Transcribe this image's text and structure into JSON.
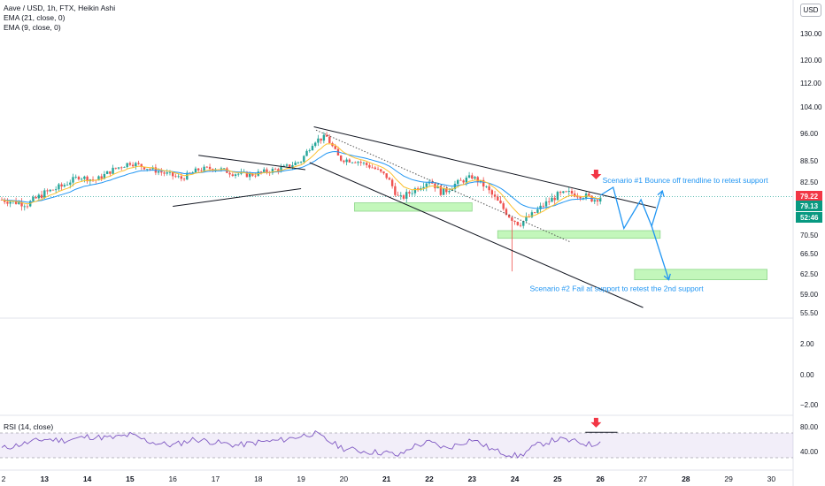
{
  "legend": {
    "symbol": "Aave / USD, 1h, FTX, Heikin Ashi",
    "ema21": "EMA (21, close, 0)",
    "ema9": "EMA (9, close, 0)",
    "rsi": "RSI (14, close)"
  },
  "currency_button": "USD",
  "colors": {
    "up": "#26a69a",
    "down": "#ef5350",
    "ema21": "#2196f3",
    "ema9": "#fbc02d",
    "rsi": "#7e57c2",
    "zone": "#b9f6b0",
    "annotation": "#2196f3",
    "arrow": "#f23645",
    "trendline": "#131722"
  },
  "chart_data": {
    "type": "candlestick",
    "x_labels": [
      "2",
      "13",
      "14",
      "15",
      "16",
      "17",
      "18",
      "19",
      "20",
      "21",
      "22",
      "23",
      "24",
      "25",
      "26",
      "27",
      "28",
      "29",
      "30"
    ],
    "price_ticks": [
      "130.00",
      "120.00",
      "112.00",
      "104.00",
      "96.00",
      "88.50",
      "82.50",
      "76.50",
      "70.50",
      "66.50",
      "62.50",
      "59.00",
      "55.50"
    ],
    "price_ticks_num": [
      130,
      120,
      112,
      104,
      96,
      88.5,
      82.5,
      76.5,
      70.5,
      66.5,
      62.5,
      59,
      55.5
    ],
    "lower_ticks": [
      "2.00",
      "0.00",
      "−2.00"
    ],
    "rsi_ticks": [
      "80.00",
      "40.00"
    ],
    "rsi_band": [
      30,
      70
    ],
    "price_labels": [
      {
        "text": "79.22",
        "color": "#f23645"
      },
      {
        "text": "79.13",
        "color": "#089981"
      },
      {
        "text": "52:46",
        "color": "#089981"
      }
    ],
    "last_price": 79.22,
    "price_anchors": [
      {
        "day": 12.0,
        "price": 78.5
      },
      {
        "day": 12.6,
        "price": 77.5
      },
      {
        "day": 13.0,
        "price": 80.0
      },
      {
        "day": 13.4,
        "price": 81.5
      },
      {
        "day": 13.8,
        "price": 84.0
      },
      {
        "day": 14.2,
        "price": 83.0
      },
      {
        "day": 14.6,
        "price": 86.0
      },
      {
        "day": 15.0,
        "price": 88.0
      },
      {
        "day": 15.4,
        "price": 86.5
      },
      {
        "day": 15.8,
        "price": 85.0
      },
      {
        "day": 16.2,
        "price": 83.5
      },
      {
        "day": 16.6,
        "price": 86.0
      },
      {
        "day": 17.0,
        "price": 86.5
      },
      {
        "day": 17.4,
        "price": 85.0
      },
      {
        "day": 17.8,
        "price": 84.5
      },
      {
        "day": 18.2,
        "price": 85.5
      },
      {
        "day": 18.6,
        "price": 86.5
      },
      {
        "day": 19.0,
        "price": 88.5
      },
      {
        "day": 19.3,
        "price": 94.0
      },
      {
        "day": 19.6,
        "price": 95.0
      },
      {
        "day": 19.9,
        "price": 89.0
      },
      {
        "day": 20.3,
        "price": 88.5
      },
      {
        "day": 20.7,
        "price": 86.5
      },
      {
        "day": 21.0,
        "price": 84.0
      },
      {
        "day": 21.3,
        "price": 78.5
      },
      {
        "day": 21.6,
        "price": 80.5
      },
      {
        "day": 22.0,
        "price": 83.0
      },
      {
        "day": 22.3,
        "price": 80.0
      },
      {
        "day": 22.6,
        "price": 82.0
      },
      {
        "day": 23.0,
        "price": 84.0
      },
      {
        "day": 23.3,
        "price": 81.5
      },
      {
        "day": 23.6,
        "price": 78.0
      },
      {
        "day": 23.9,
        "price": 74.5
      },
      {
        "day": 24.1,
        "price": 73.0
      },
      {
        "day": 24.4,
        "price": 75.0
      },
      {
        "day": 24.7,
        "price": 77.5
      },
      {
        "day": 25.0,
        "price": 79.5
      },
      {
        "day": 25.3,
        "price": 80.0
      },
      {
        "day": 25.6,
        "price": 79.5
      },
      {
        "day": 25.85,
        "price": 78.5
      },
      {
        "day": 26.0,
        "price": 79.2
      }
    ],
    "rsi_anchors": [
      {
        "day": 12.0,
        "value": 45
      },
      {
        "day": 13.0,
        "value": 60
      },
      {
        "day": 13.5,
        "value": 58
      },
      {
        "day": 14.0,
        "value": 64
      },
      {
        "day": 14.6,
        "value": 62
      },
      {
        "day": 15.0,
        "value": 67
      },
      {
        "day": 15.5,
        "value": 55
      },
      {
        "day": 16.0,
        "value": 50
      },
      {
        "day": 16.5,
        "value": 60
      },
      {
        "day": 17.0,
        "value": 55
      },
      {
        "day": 17.5,
        "value": 50
      },
      {
        "day": 18.0,
        "value": 55
      },
      {
        "day": 18.5,
        "value": 58
      },
      {
        "day": 19.0,
        "value": 65
      },
      {
        "day": 19.3,
        "value": 70
      },
      {
        "day": 19.7,
        "value": 55
      },
      {
        "day": 20.0,
        "value": 45
      },
      {
        "day": 20.5,
        "value": 40
      },
      {
        "day": 21.0,
        "value": 38
      },
      {
        "day": 21.3,
        "value": 33
      },
      {
        "day": 21.6,
        "value": 48
      },
      {
        "day": 22.0,
        "value": 55
      },
      {
        "day": 22.4,
        "value": 45
      },
      {
        "day": 23.0,
        "value": 60
      },
      {
        "day": 23.5,
        "value": 42
      },
      {
        "day": 23.9,
        "value": 35
      },
      {
        "day": 24.1,
        "value": 32
      },
      {
        "day": 24.5,
        "value": 50
      },
      {
        "day": 25.0,
        "value": 60
      },
      {
        "day": 25.5,
        "value": 55
      },
      {
        "day": 25.85,
        "value": 50
      },
      {
        "day": 26.0,
        "value": 60
      }
    ],
    "trendlines": [
      {
        "name": "pennant-upper",
        "from": {
          "day": 16.6,
          "price": 90.0
        },
        "to": {
          "day": 19.1,
          "price": 86.0
        }
      },
      {
        "name": "pennant-lower",
        "from": {
          "day": 16.0,
          "price": 77.0
        },
        "to": {
          "day": 19.0,
          "price": 81.0
        }
      },
      {
        "name": "wedge-upper",
        "from": {
          "day": 19.3,
          "price": 98.0
        },
        "to": {
          "day": 27.3,
          "price": 76.7
        }
      },
      {
        "name": "wedge-lower",
        "from": {
          "day": 19.2,
          "price": 88.0
        },
        "to": {
          "day": 27.0,
          "price": 56.5
        }
      },
      {
        "name": "dotted-channel",
        "from": {
          "day": 19.35,
          "price": 97.0
        },
        "to": {
          "day": 25.3,
          "price": 69.0
        },
        "style": "dotted"
      }
    ],
    "support_zones": [
      {
        "from_day": 20.25,
        "to_day": 23.0,
        "top": 77.8,
        "bottom": 75.9
      },
      {
        "from_day": 23.6,
        "to_day": 27.4,
        "top": 71.5,
        "bottom": 69.8
      },
      {
        "from_day": 26.8,
        "to_day": 29.9,
        "top": 63.4,
        "bottom": 61.5
      }
    ],
    "scenario_path_1": [
      {
        "day": 26.0,
        "price": 79.5
      },
      {
        "day": 26.3,
        "price": 81.3
      },
      {
        "day": 26.55,
        "price": 72.0
      },
      {
        "day": 26.95,
        "price": 78.5
      },
      {
        "day": 27.2,
        "price": 72.5
      },
      {
        "day": 27.45,
        "price": 80.5
      }
    ],
    "scenario_path_2": [
      {
        "day": 27.2,
        "price": 72.5
      },
      {
        "day": 27.6,
        "price": 61.5
      }
    ],
    "annotations": [
      {
        "text": "Scenario #1 Bounce off trendline to retest support",
        "day": 26.05,
        "price": 83.0
      },
      {
        "text": "Scenario #2 Fail at support to retest the 2nd support",
        "day": 24.35,
        "price": 60.0
      }
    ],
    "arrow_markers": [
      {
        "pane": "price",
        "day": 25.9,
        "price": 84.0
      },
      {
        "pane": "rsi",
        "day": 25.9,
        "value": 83
      }
    ],
    "rsi_level_line": {
      "from_day": 25.65,
      "to_day": 26.4,
      "value": 71
    }
  }
}
